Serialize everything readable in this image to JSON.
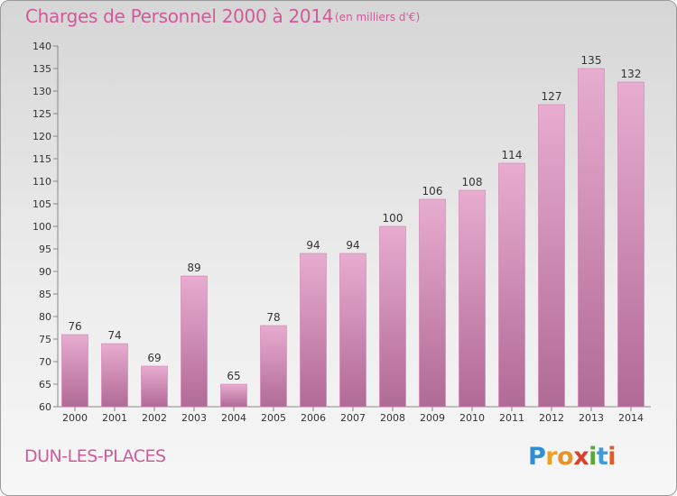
{
  "header": {
    "title": "Charges de Personnel 2000 à 2014",
    "unit": "(en milliers d'€)"
  },
  "footer": {
    "commune": "DUN-LES-PLACES",
    "logo_text": "Proxiti"
  },
  "colors": {
    "accent": "#d05a9a",
    "bar_top": "#e8acd0",
    "bar_bottom": "#b06a96",
    "bar_stroke": "#d77fb2"
  },
  "chart_data": {
    "type": "bar",
    "categories": [
      "2000",
      "2001",
      "2002",
      "2003",
      "2004",
      "2005",
      "2006",
      "2007",
      "2008",
      "2009",
      "2010",
      "2011",
      "2012",
      "2013",
      "2014"
    ],
    "values": [
      76,
      74,
      69,
      89,
      65,
      78,
      94,
      94,
      100,
      106,
      108,
      114,
      127,
      135,
      132
    ],
    "ylim": [
      60,
      140
    ],
    "yticks": [
      60,
      65,
      70,
      75,
      80,
      85,
      90,
      95,
      100,
      105,
      110,
      115,
      120,
      125,
      130,
      135,
      140
    ],
    "grid": false,
    "data_labels": true
  }
}
